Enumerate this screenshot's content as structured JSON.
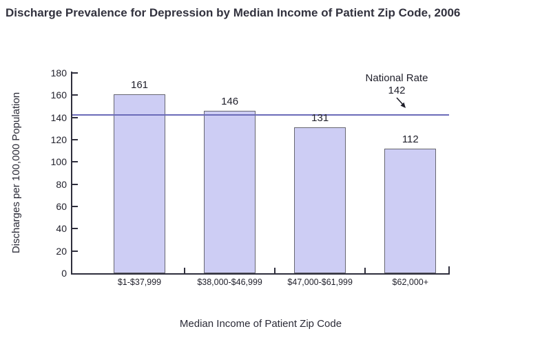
{
  "page": {
    "title": "Discharge Prevalence for Depression by Median Income of Patient Zip Code, 2006"
  },
  "chart_data": {
    "type": "bar",
    "title": "Discharge Prevalence for Depression by Median Income of Patient Zip Code, 2006",
    "categories": [
      "$1-$37,999",
      "$38,000-$46,999",
      "$47,000-$61,999",
      "$62,000+"
    ],
    "values": [
      161,
      146,
      131,
      112
    ],
    "xlabel": "Median Income of Patient Zip Code",
    "ylabel": "Discharges per 100,000 Population",
    "ylim": [
      0,
      180
    ],
    "ytick_step": 20,
    "grid": false,
    "legend": "none",
    "reference_line": {
      "label": "National Rate",
      "value": 142,
      "value_text": "142"
    },
    "colors": {
      "bar_fill": "#cdcdf4",
      "bar_border": "#666670",
      "reference_line": "#6a6ab8",
      "axis": "#2e2e3c",
      "title_text": "#32323e",
      "tick_text": "#1f1f2a"
    }
  }
}
